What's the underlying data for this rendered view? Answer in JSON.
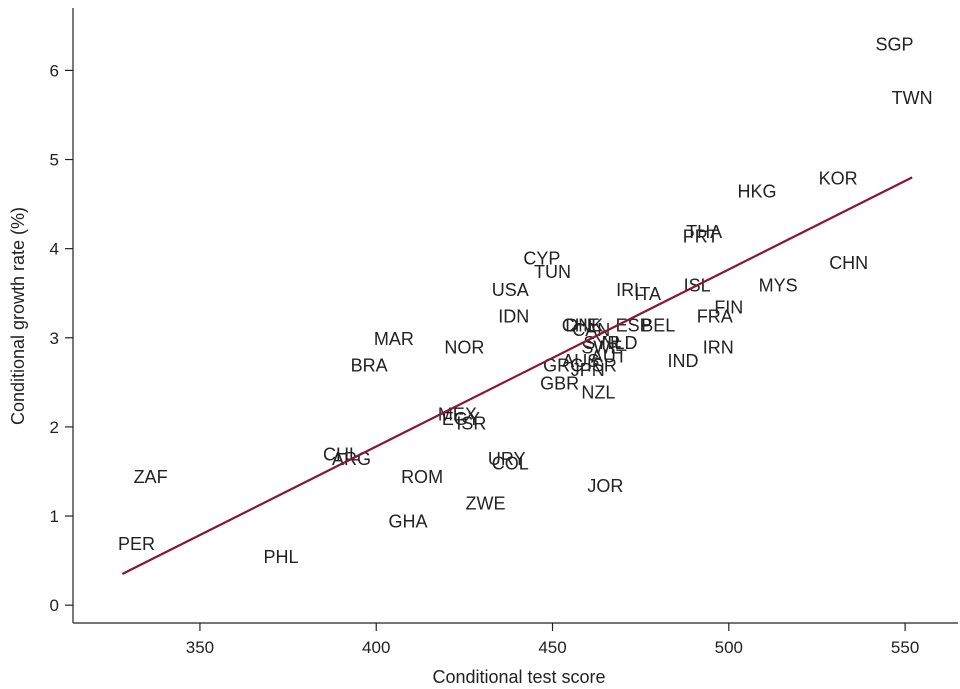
{
  "chart_data": {
    "type": "scatter",
    "xlabel": "Conditional test score",
    "ylabel": "Conditional growth rate (%)",
    "xlim": [
      314,
      565
    ],
    "ylim": [
      -0.2,
      6.7
    ],
    "xticks": [
      350,
      400,
      450,
      500,
      550
    ],
    "yticks": [
      0,
      1,
      2,
      3,
      4,
      5,
      6
    ],
    "grid": false,
    "points": [
      {
        "label": "SGP",
        "x": 547,
        "y": 6.3
      },
      {
        "label": "TWN",
        "x": 552,
        "y": 5.7
      },
      {
        "label": "KOR",
        "x": 531,
        "y": 4.8
      },
      {
        "label": "HKG",
        "x": 508,
        "y": 4.65
      },
      {
        "label": "CHN",
        "x": 534,
        "y": 3.85
      },
      {
        "label": "MYS",
        "x": 514,
        "y": 3.6
      },
      {
        "label": "THA",
        "x": 493,
        "y": 4.2
      },
      {
        "label": "PRT",
        "x": 492,
        "y": 4.15
      },
      {
        "label": "ISL",
        "x": 491,
        "y": 3.6
      },
      {
        "label": "FIN",
        "x": 500,
        "y": 3.35
      },
      {
        "label": "FRA",
        "x": 496,
        "y": 3.25
      },
      {
        "label": "IRN",
        "x": 497,
        "y": 2.9
      },
      {
        "label": "IND",
        "x": 487,
        "y": 2.75
      },
      {
        "label": "IRL",
        "x": 472,
        "y": 3.55
      },
      {
        "label": "ITA",
        "x": 477,
        "y": 3.5
      },
      {
        "label": "ESP",
        "x": 473,
        "y": 3.15
      },
      {
        "label": "BEL",
        "x": 480,
        "y": 3.15
      },
      {
        "label": "NLD",
        "x": 469,
        "y": 2.95
      },
      {
        "label": "AUT",
        "x": 466,
        "y": 2.8
      },
      {
        "label": "CHE",
        "x": 458,
        "y": 3.15
      },
      {
        "label": "DNK",
        "x": 459,
        "y": 3.15
      },
      {
        "label": "CAN",
        "x": 461,
        "y": 3.1
      },
      {
        "label": "CYP",
        "x": 447,
        "y": 3.9
      },
      {
        "label": "TUN",
        "x": 450,
        "y": 3.75
      },
      {
        "label": "USA",
        "x": 438,
        "y": 3.55
      },
      {
        "label": "IDN",
        "x": 439,
        "y": 3.25
      },
      {
        "label": "NOR",
        "x": 425,
        "y": 2.9
      },
      {
        "label": "SWE",
        "x": 464,
        "y": 2.9
      },
      {
        "label": "SYR",
        "x": 464,
        "y": 2.95
      },
      {
        "label": "GRC",
        "x": 453,
        "y": 2.7
      },
      {
        "label": "AUS",
        "x": 458,
        "y": 2.75
      },
      {
        "label": "JPN",
        "x": 460,
        "y": 2.65
      },
      {
        "label": "ISR",
        "x": 464,
        "y": 2.7
      },
      {
        "label": "GBR",
        "x": 452,
        "y": 2.5
      },
      {
        "label": "NZL",
        "x": 463,
        "y": 2.4
      },
      {
        "label": "MAR",
        "x": 405,
        "y": 3.0
      },
      {
        "label": "BRA",
        "x": 398,
        "y": 2.7
      },
      {
        "label": "MEX",
        "x": 423,
        "y": 2.15
      },
      {
        "label": "EGY",
        "x": 424,
        "y": 2.1
      },
      {
        "label": "ISR",
        "x": 427,
        "y": 2.05
      },
      {
        "label": "CHL",
        "x": 390,
        "y": 1.7
      },
      {
        "label": "ARG",
        "x": 393,
        "y": 1.65
      },
      {
        "label": "URY",
        "x": 437,
        "y": 1.65
      },
      {
        "label": "COL",
        "x": 438,
        "y": 1.6
      },
      {
        "label": "ROM",
        "x": 413,
        "y": 1.45
      },
      {
        "label": "ZWE",
        "x": 431,
        "y": 1.15
      },
      {
        "label": "GHA",
        "x": 409,
        "y": 0.95
      },
      {
        "label": "JOR",
        "x": 465,
        "y": 1.35
      },
      {
        "label": "ZAF",
        "x": 336,
        "y": 1.45
      },
      {
        "label": "PER",
        "x": 332,
        "y": 0.7
      },
      {
        "label": "PHL",
        "x": 373,
        "y": 0.55
      }
    ],
    "fit_line": {
      "x": [
        328,
        552
      ],
      "y": [
        0.35,
        4.8
      ],
      "color": "#8b1538"
    }
  }
}
